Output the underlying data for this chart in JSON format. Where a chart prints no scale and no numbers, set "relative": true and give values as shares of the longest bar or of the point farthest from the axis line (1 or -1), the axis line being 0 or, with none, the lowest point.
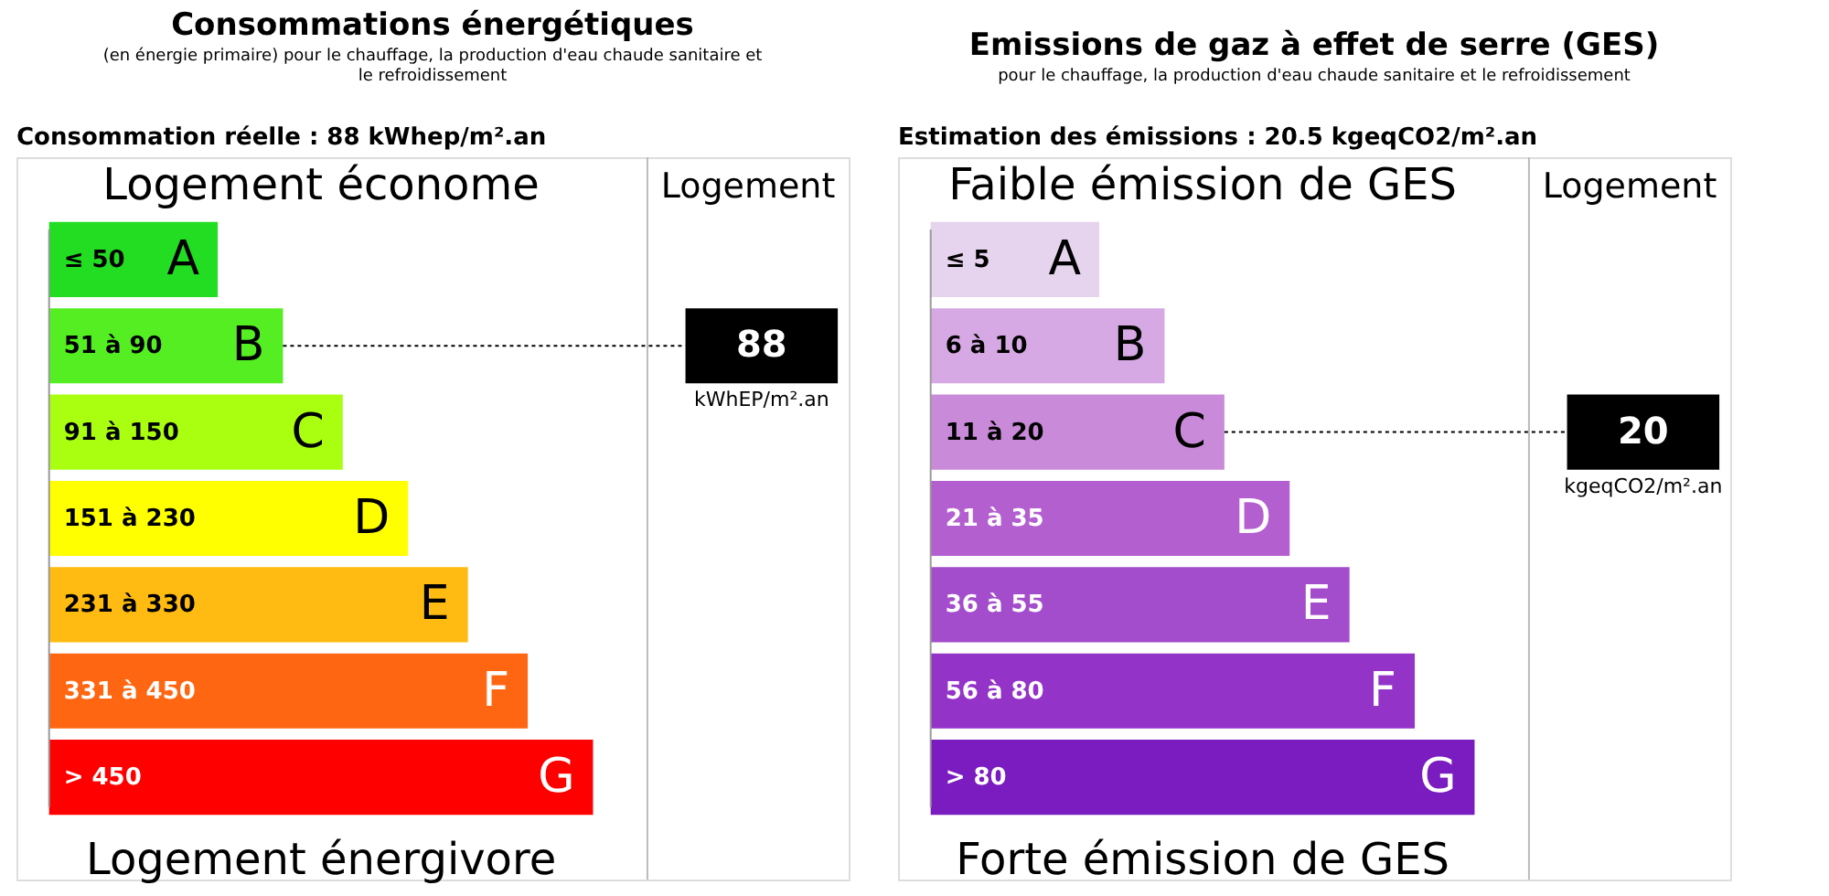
{
  "chart_data": [
    {
      "type": "bar",
      "orientation": "horizontal",
      "relative": true,
      "title": "Consommations énergétiques",
      "subtitle": "(en énergie primaire) pour le chauffage, la production d'eau chaude sanitaire et le refroidissement",
      "categories": [
        "A",
        "B",
        "C",
        "D",
        "E",
        "F",
        "G"
      ],
      "values": [
        0.31,
        0.43,
        0.54,
        0.66,
        0.77,
        0.88,
        1
      ],
      "colors": [
        "#22dd22",
        "#55ee22",
        "#aaff11",
        "#ffff00",
        "#ffbb11",
        "#ff6611",
        "#ff0000"
      ],
      "ref_lines": [
        {
          "axis": "y",
          "value": "B",
          "label": "88",
          "line_style": "dotted"
        }
      ],
      "annotations": [
        "Consommation réelle : 88 kWhep/m².an",
        "Logement économe",
        "Logement énergivore",
        "Logement",
        "kWhEP/m².an",
        "≤ 50",
        "51 à 90",
        "91 à 150",
        "151 à 230",
        "231 à 330",
        "331 à 450",
        "> 450"
      ]
    },
    {
      "type": "bar",
      "orientation": "horizontal",
      "relative": true,
      "title": "Emissions de gaz à effet de serre (GES)",
      "subtitle": "pour le chauffage, la production d'eau chaude sanitaire et le refroidissement",
      "categories": [
        "A",
        "B",
        "C",
        "D",
        "E",
        "F",
        "G"
      ],
      "values": [
        0.31,
        0.43,
        0.54,
        0.66,
        0.77,
        0.89,
        1
      ],
      "colors": [
        "#e6d4ee",
        "#d6a8e4",
        "#c98ad9",
        "#b35fd0",
        "#a34ccc",
        "#9433c8",
        "#7a1cbf"
      ],
      "ref_lines": [
        {
          "axis": "y",
          "value": "C",
          "label": "20",
          "line_style": "dotted"
        }
      ],
      "annotations": [
        "Estimation des émissions : 20.5 kgeqCO2/m².an",
        "Faible émission de GES",
        "Forte émission de GES",
        "Logement",
        "kgeqCO2/m².an",
        "≤ 5",
        "6 à 10",
        "11 à 20",
        "21 à 35",
        "36 à 55",
        "56 à 80",
        "> 80"
      ]
    }
  ]
}
